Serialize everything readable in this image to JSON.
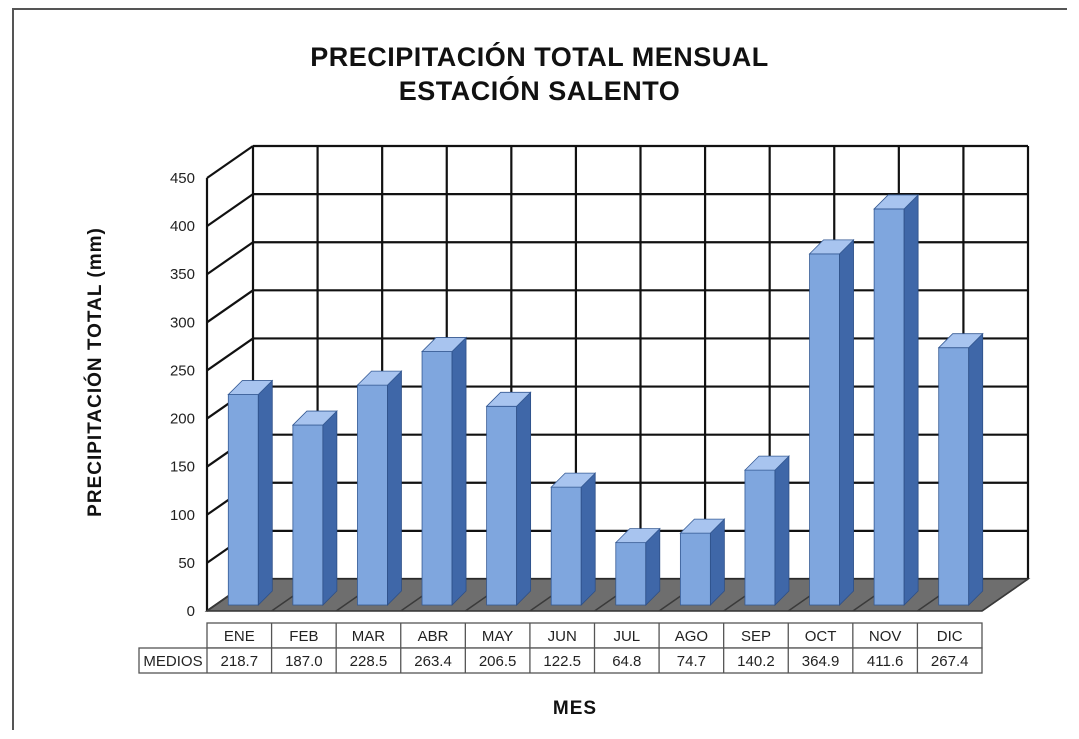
{
  "chart_data": {
    "type": "bar",
    "title_lines": [
      "PRECIPITACIÓN TOTAL MENSUAL",
      "ESTACIÓN SALENTO"
    ],
    "ylabel": "PRECIPITACIÓN TOTAL (mm)",
    "xlabel": "MES",
    "ylim": [
      0,
      450
    ],
    "yticks": [
      0,
      50,
      100,
      150,
      200,
      250,
      300,
      350,
      400,
      450
    ],
    "grid": true,
    "categories": [
      "ENE",
      "FEB",
      "MAR",
      "ABR",
      "MAY",
      "JUN",
      "JUL",
      "AGO",
      "SEP",
      "OCT",
      "NOV",
      "DIC"
    ],
    "series": [
      {
        "name": "MEDIOS",
        "values": [
          218.7,
          187.0,
          228.5,
          263.4,
          206.5,
          122.5,
          64.8,
          74.7,
          140.2,
          364.9,
          411.6,
          267.4
        ],
        "value_labels": [
          "218.7",
          "187.0",
          "228.5",
          "263.4",
          "206.5",
          "122.5",
          "64.8",
          "74.7",
          "140.2",
          "364.9",
          "411.6",
          "267.4"
        ]
      }
    ],
    "colors": {
      "bar_front": "#7fa6de",
      "bar_side": "#3f67a8",
      "bar_top": "#a8c4ef",
      "floor": "#6e6e6e",
      "grid": "#111111"
    }
  }
}
